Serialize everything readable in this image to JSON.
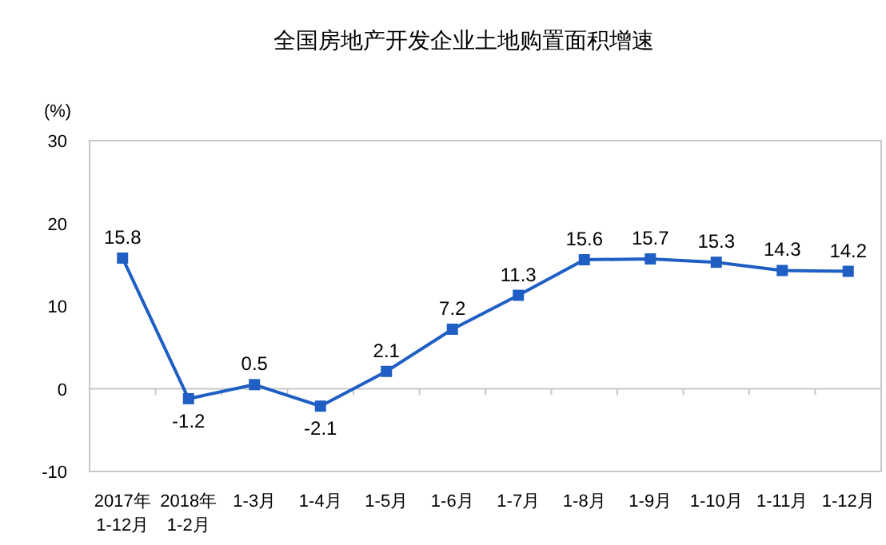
{
  "chart_data": {
    "type": "line",
    "title": "全国房地产开发企业土地购置面积增速",
    "ylabel": "(%)",
    "categories": [
      "2017年\n1-12月",
      "2018年\n1-2月",
      "1-3月",
      "1-4月",
      "1-5月",
      "1-6月",
      "1-7月",
      "1-8月",
      "1-9月",
      "1-10月",
      "1-11月",
      "1-12月"
    ],
    "series": [
      {
        "color": "#1f5fc4",
        "values": [
          15.8,
          -1.2,
          0.5,
          -2.1,
          2.1,
          7.2,
          11.3,
          15.6,
          15.7,
          15.3,
          14.3,
          14.2
        ]
      }
    ],
    "ylim": [
      -10,
      30
    ],
    "yticks": [
      -10,
      0,
      10,
      20,
      30
    ],
    "marker": "square",
    "line_style": "solid",
    "data_labels": true
  }
}
